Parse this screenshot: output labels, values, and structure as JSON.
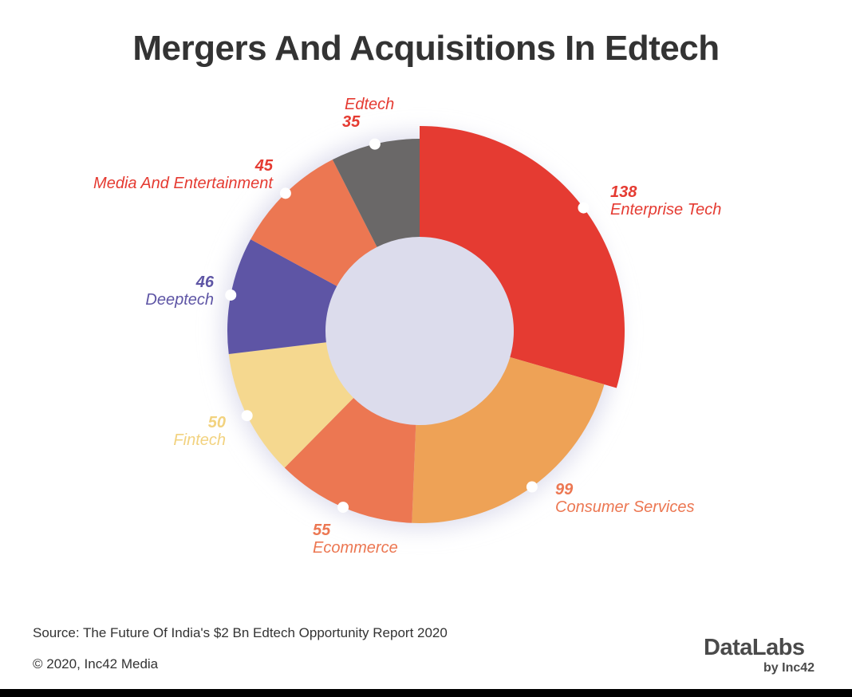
{
  "chart_data": {
    "type": "pie",
    "variant": "donut",
    "title": "Mergers And Acquisitions In Edtech",
    "slices": [
      {
        "label": "Enterprise Tech",
        "value": 138,
        "color": "#e53b32",
        "label_color": "#e53b32",
        "highlighted": true
      },
      {
        "label": "Consumer Services",
        "value": 99,
        "color": "#eea256",
        "label_color": "#ec7752"
      },
      {
        "label": "Ecommerce",
        "value": 55,
        "color": "#ec7752",
        "label_color": "#ec7752"
      },
      {
        "label": "Fintech",
        "value": 50,
        "color": "#f5d88f",
        "label_color": "#f2d27f"
      },
      {
        "label": "Deeptech",
        "value": 46,
        "color": "#5e55a5",
        "label_color": "#5e55a5"
      },
      {
        "label": "Media And Entertainment",
        "value": 45,
        "color": "#ec7752",
        "label_color": "#e53b32"
      },
      {
        "label": "Edtech",
        "value": 35,
        "color": "#6a6868",
        "label_color": "#e53b32"
      }
    ],
    "start": "top",
    "direction": "clockwise"
  },
  "footer": {
    "source": "Source: The Future Of India's $2 Bn Edtech Opportunity Report 2020",
    "copyright": "© 2020, Inc42 Media",
    "logo_main": "DataLabs",
    "logo_sub": "by Inc42"
  }
}
